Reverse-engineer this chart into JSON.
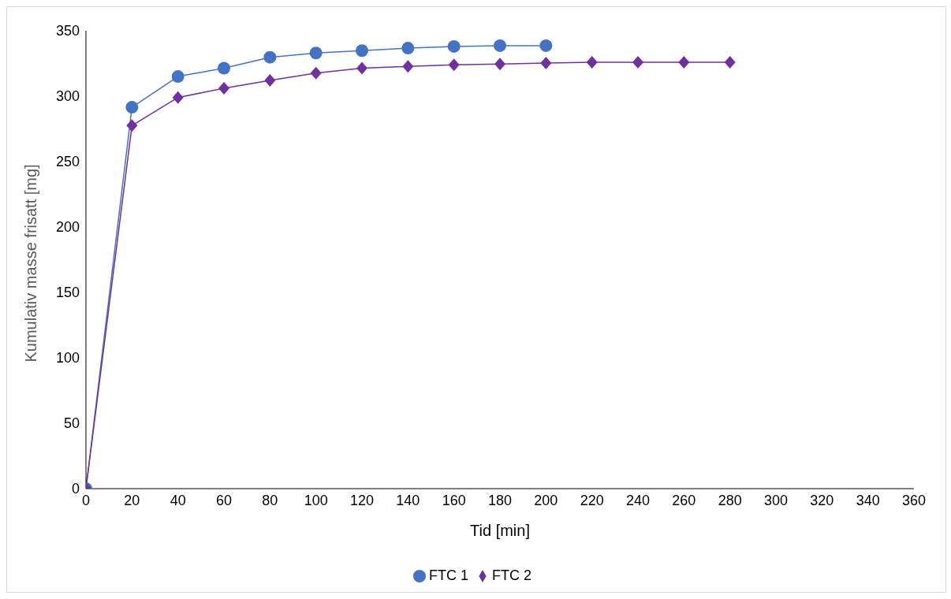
{
  "chart_data": {
    "type": "line",
    "xlabel": "Tid [min]",
    "ylabel": "Kumulativ masse frisatt [mg]",
    "xlim": [
      0,
      360
    ],
    "xticks": [
      0,
      20,
      40,
      60,
      80,
      100,
      120,
      140,
      160,
      180,
      200,
      220,
      240,
      260,
      280,
      300,
      320,
      340,
      360
    ],
    "ylim": [
      0,
      350
    ],
    "yticks": [
      0,
      50,
      100,
      150,
      200,
      250,
      300,
      350
    ],
    "grid": false,
    "legend": "bottom",
    "series": [
      {
        "name": "FTC 1",
        "color": "#4472c4",
        "marker": "circle",
        "x": [
          0,
          20,
          40,
          60,
          80,
          100,
          120,
          140,
          160,
          180,
          200
        ],
        "values": [
          0,
          291.5,
          315,
          321.4,
          329.7,
          333,
          334.8,
          336.7,
          338,
          338.6,
          338.6
        ]
      },
      {
        "name": "FTC 2",
        "color": "#7030a0",
        "marker": "diamond",
        "x": [
          0,
          20,
          40,
          60,
          80,
          100,
          120,
          140,
          160,
          180,
          200,
          220,
          240,
          260,
          280
        ],
        "values": [
          0,
          277.5,
          299,
          306,
          312,
          317.6,
          321.4,
          322.7,
          324,
          324.6,
          325.3,
          325.9,
          325.9,
          325.9,
          325.9
        ]
      }
    ]
  }
}
